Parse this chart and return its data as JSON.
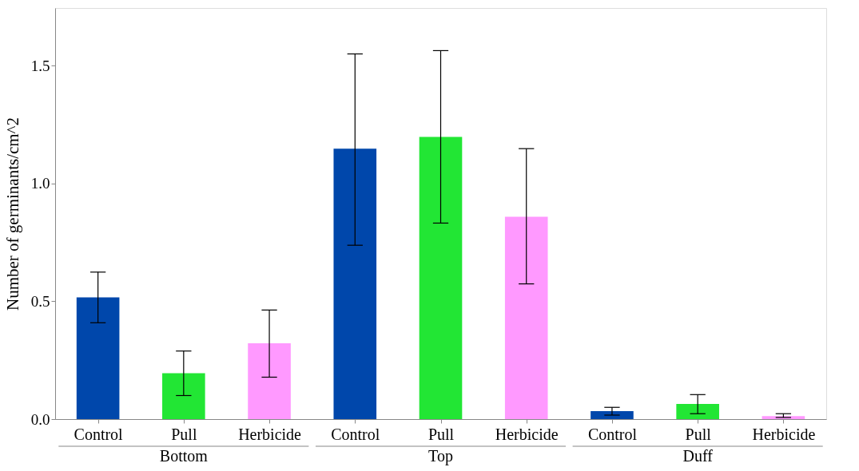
{
  "chart_data": {
    "type": "bar",
    "ylabel": "Number of germinants/cm^2",
    "categories": [
      "Control",
      "Pull",
      "Herbicide",
      "Control",
      "Pull",
      "Herbicide",
      "Control",
      "Pull",
      "Herbicide"
    ],
    "values": [
      0.517,
      0.195,
      0.322,
      1.148,
      1.198,
      0.859,
      0.034,
      0.064,
      0.013
    ],
    "colors": [
      "#0047ab",
      "#22e634",
      "#ff99ff",
      "#0047ab",
      "#22e634",
      "#ff99ff",
      "#0047ab",
      "#22e634",
      "#ff99ff"
    ],
    "errors": [
      [
        0.409,
        0.624
      ],
      [
        0.1,
        0.289
      ],
      [
        0.178,
        0.463
      ],
      [
        0.738,
        1.55
      ],
      [
        0.832,
        1.564
      ],
      [
        0.574,
        1.148
      ],
      [
        0.017,
        0.05
      ],
      [
        0.023,
        0.104
      ],
      [
        0.007,
        0.023
      ]
    ],
    "annotations": [
      "Bottom",
      "Top",
      "Duff"
    ],
    "ylim": [
      0,
      1.745
    ],
    "yticks": [
      {
        "value": 0,
        "label": "0.0"
      },
      {
        "value": 0.5,
        "label": "0.5"
      },
      {
        "value": 1,
        "label": "1.0"
      },
      {
        "value": 1.5,
        "label": "1.5"
      }
    ],
    "grid": false
  }
}
